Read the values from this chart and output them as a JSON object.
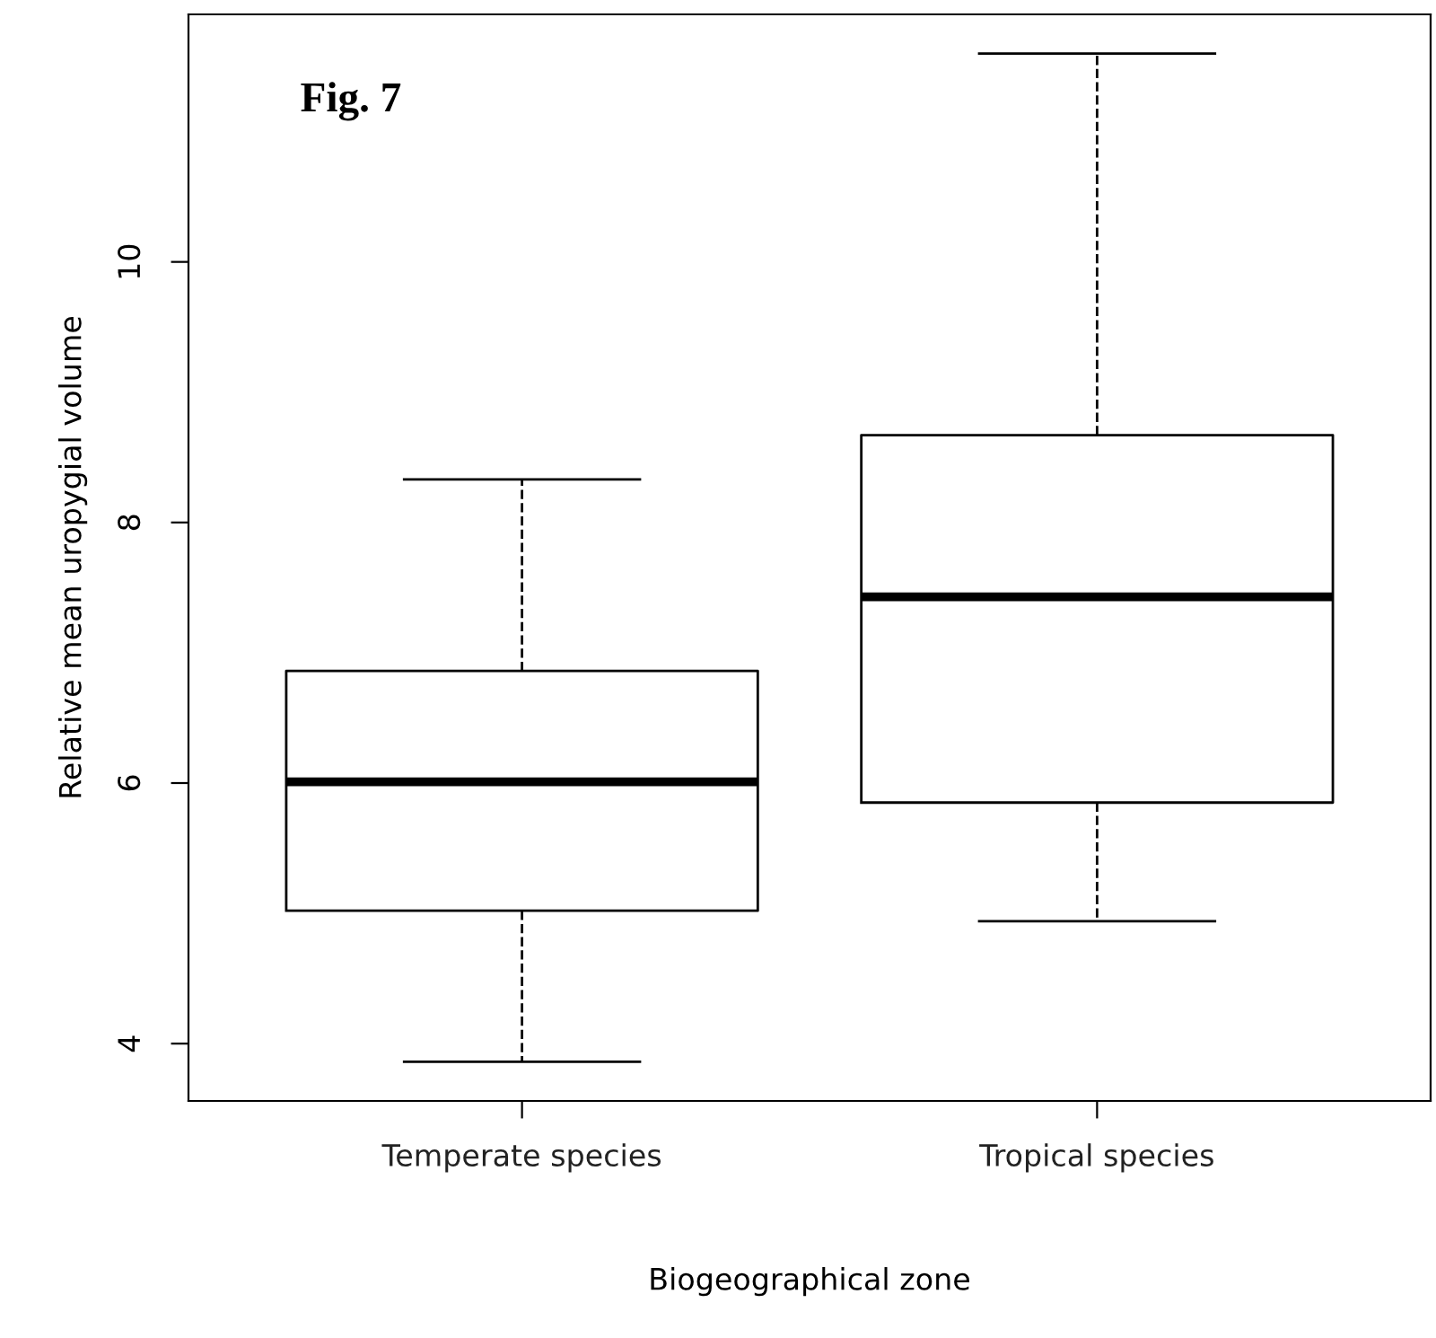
{
  "chart_data": {
    "type": "box",
    "xlabel": "Biogeographical zone",
    "ylabel": "Relative mean uropygial volume",
    "categories": [
      "Temperate species",
      "Tropical species"
    ],
    "boxes": [
      {
        "low": 3.86,
        "q1": 5.02,
        "median": 6.01,
        "q3": 6.86,
        "high": 8.33
      },
      {
        "low": 4.94,
        "q1": 5.85,
        "median": 7.43,
        "q3": 8.67,
        "high": 11.6
      }
    ],
    "ylim": [
      3.56,
      11.9
    ],
    "yticks": [
      4,
      6,
      8,
      10
    ],
    "grid": false,
    "annotations": [
      "Fig. 7"
    ]
  }
}
